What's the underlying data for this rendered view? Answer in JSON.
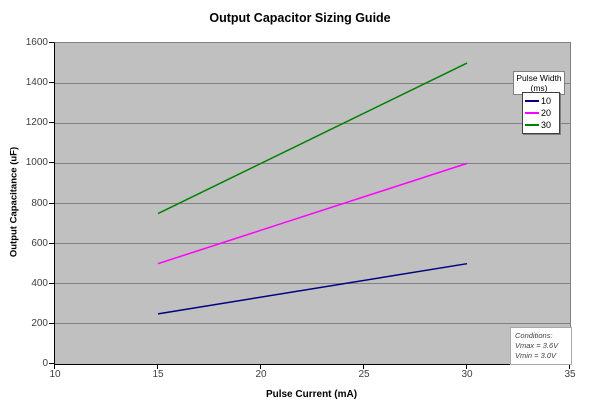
{
  "chart_data": {
    "type": "line",
    "title": "Output Capacitor Sizing Guide",
    "xlabel": "Pulse Current (mA)",
    "ylabel": "Output Capacitance (uF)",
    "xlim": [
      10,
      35
    ],
    "ylim": [
      0,
      1600
    ],
    "x_ticks": [
      10,
      15,
      20,
      25,
      30,
      35
    ],
    "y_ticks": [
      0,
      200,
      400,
      600,
      800,
      1000,
      1200,
      1400,
      1600
    ],
    "grid": "horizontal",
    "plot_bg": "#c0c0c0",
    "gridline_color": "#808080",
    "legend": {
      "title_lines": [
        "Pulse Width",
        "(ms)"
      ],
      "position": "upper-right"
    },
    "series": [
      {
        "name": "10",
        "color": "#000080",
        "x": [
          15,
          30
        ],
        "y": [
          250,
          500
        ]
      },
      {
        "name": "20",
        "color": "#ff00ff",
        "x": [
          15,
          30
        ],
        "y": [
          500,
          1000
        ]
      },
      {
        "name": "30",
        "color": "#008000",
        "x": [
          15,
          30
        ],
        "y": [
          750,
          1500
        ]
      }
    ],
    "annotation": {
      "lines": [
        "Conditions:",
        "Vmax = 3.6V",
        "Vmin = 3.0V"
      ]
    }
  }
}
